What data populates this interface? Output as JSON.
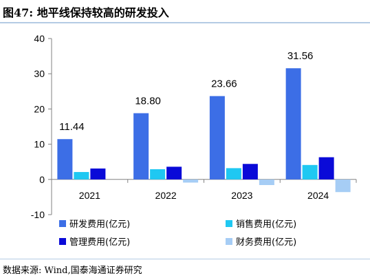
{
  "header": {
    "title": "图47:  地平线保持较高的研发投入"
  },
  "footer": {
    "source": "数据来源:  Wind,国泰海通证券研究"
  },
  "chart_data": {
    "type": "bar",
    "title": "",
    "xlabel": "",
    "ylabel": "",
    "categories": [
      "2021",
      "2022",
      "2023",
      "2024"
    ],
    "ylim": [
      -10,
      40
    ],
    "yticks": [
      -10,
      0,
      10,
      20,
      30,
      40
    ],
    "grid": false,
    "legend_position": "bottom",
    "series": [
      {
        "name": "研发费用(亿元)",
        "color": "#3c6ee6",
        "values": [
          11.44,
          18.8,
          23.66,
          31.56
        ]
      },
      {
        "name": "销售费用(亿元)",
        "color": "#1fc8f2",
        "values": [
          2.1,
          2.9,
          3.2,
          4.1
        ]
      },
      {
        "name": "管理费用(亿元)",
        "color": "#0a0ad8",
        "values": [
          3.1,
          3.6,
          4.4,
          6.3
        ]
      },
      {
        "name": "财务费用(亿元)",
        "color": "#a6cdf5",
        "values": [
          0.0,
          -0.9,
          -1.6,
          -3.6
        ]
      }
    ],
    "data_labels": [
      {
        "series": 0,
        "index": 0,
        "text": "11.44"
      },
      {
        "series": 0,
        "index": 1,
        "text": "18.80"
      },
      {
        "series": 0,
        "index": 2,
        "text": "23.66"
      },
      {
        "series": 0,
        "index": 3,
        "text": "31.56"
      }
    ]
  }
}
